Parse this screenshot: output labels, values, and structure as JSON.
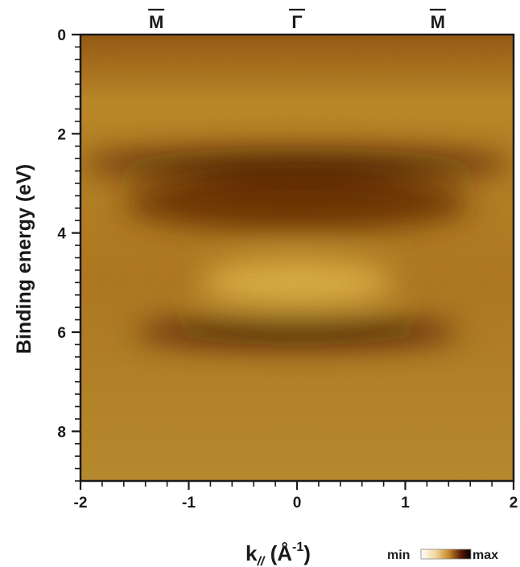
{
  "chart_data": {
    "type": "heatmap",
    "xlabel": "k",
    "xlabel_sub": "//",
    "xlabel_unit_open": " (Å",
    "xlabel_unit_sup": "-1",
    "xlabel_unit_close": ")",
    "ylabel": "Binding energy (eV)",
    "xlim": [
      -2,
      2
    ],
    "ylim": [
      0,
      9
    ],
    "y_inverted": true,
    "x_ticks": [
      -2,
      -1,
      0,
      1,
      2
    ],
    "x_tick_labels": [
      "-2",
      "-1",
      "0",
      "1",
      "2"
    ],
    "y_ticks": [
      0,
      2,
      4,
      6,
      8
    ],
    "y_tick_labels": [
      "0",
      "2",
      "4",
      "6",
      "8"
    ],
    "top_labels": [
      {
        "k": -1.3,
        "text": "M"
      },
      {
        "k": 0,
        "text": "Γ"
      },
      {
        "k": 1.3,
        "text": "M"
      }
    ],
    "colorbar": {
      "min_label": "min",
      "max_label": "max",
      "colors": [
        "#ffffff",
        "#f2d59a",
        "#c88a2a",
        "#5a1b06",
        "#000000"
      ]
    },
    "features": [
      {
        "name": "band",
        "E": 2.6,
        "k_range": [
          -2,
          2
        ],
        "intensity": 0.9
      },
      {
        "name": "band",
        "E": 3.4,
        "k_range": [
          -1.6,
          1.6
        ],
        "intensity": 0.7
      },
      {
        "name": "band",
        "E": 6.0,
        "k_range": [
          -1.5,
          1.5
        ],
        "intensity": 0.85
      },
      {
        "name": "gap",
        "E": 5.0,
        "k_range": [
          -0.9,
          0.9
        ],
        "intensity": 0.1
      }
    ]
  }
}
